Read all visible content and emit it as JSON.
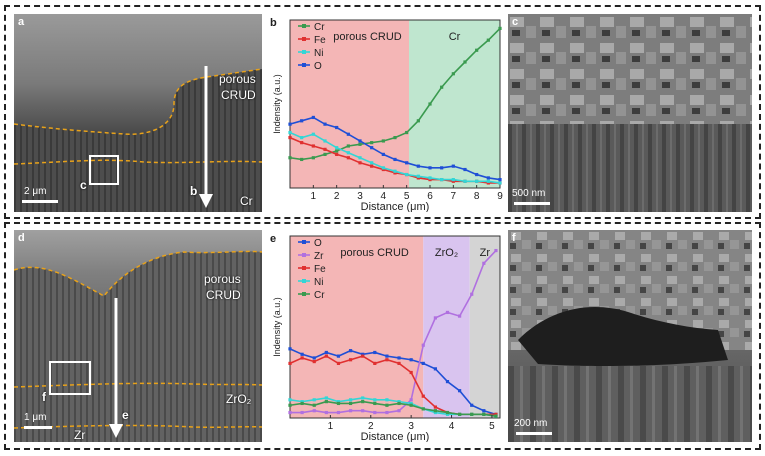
{
  "top_row": {
    "panel_a": {
      "letter": "a",
      "label_porous": "porous",
      "label_crud": "CRUD",
      "label_cr": "Cr",
      "label_b": "b",
      "label_c": "c",
      "scale": "2 μm"
    },
    "panel_c": {
      "letter": "c",
      "scale": "500 nm"
    }
  },
  "bottom_row": {
    "panel_d": {
      "letter": "d",
      "label_porous": "porous",
      "label_crud": "CRUD",
      "label_zro2": "ZrO₂",
      "label_zr": "Zr",
      "label_e": "e",
      "label_f": "f",
      "scale": "1 μm"
    },
    "panel_f": {
      "letter": "f",
      "scale": "200 nm"
    }
  },
  "chart_data": [
    {
      "panel": "b",
      "type": "line",
      "xlabel": "Distance (μm)",
      "ylabel": "Indensity (a.u.)",
      "xlim": [
        0,
        9
      ],
      "xticks": [
        1,
        2,
        3,
        4,
        5,
        6,
        7,
        8,
        9
      ],
      "regions": [
        {
          "label": "porous CRUD",
          "from": 0,
          "to": 5.1,
          "color": "#f4b6b6"
        },
        {
          "label": "Cr",
          "from": 5.1,
          "to": 9,
          "color": "#bfe6cf"
        }
      ],
      "series": [
        {
          "name": "Cr",
          "color": "#3a9a4f",
          "x": [
            0,
            0.5,
            1,
            1.5,
            2,
            2.5,
            3,
            3.5,
            4,
            4.5,
            5,
            5.5,
            6,
            6.5,
            7,
            7.5,
            8,
            8.5,
            9
          ],
          "values": [
            0.18,
            0.17,
            0.18,
            0.2,
            0.22,
            0.25,
            0.26,
            0.27,
            0.28,
            0.3,
            0.33,
            0.4,
            0.5,
            0.6,
            0.68,
            0.75,
            0.82,
            0.88,
            0.95
          ]
        },
        {
          "name": "Fe",
          "color": "#e03030",
          "x": [
            0,
            0.5,
            1,
            1.5,
            2,
            2.5,
            3,
            3.5,
            4,
            4.5,
            5,
            5.5,
            6,
            6.5,
            7,
            7.5,
            8,
            8.5,
            9
          ],
          "values": [
            0.3,
            0.27,
            0.25,
            0.23,
            0.2,
            0.18,
            0.15,
            0.13,
            0.11,
            0.09,
            0.08,
            0.06,
            0.05,
            0.05,
            0.04,
            0.04,
            0.04,
            0.03,
            0.03
          ]
        },
        {
          "name": "Ni",
          "color": "#33d6d6",
          "x": [
            0,
            0.5,
            1,
            1.5,
            2,
            2.5,
            3,
            3.5,
            4,
            4.5,
            5,
            5.5,
            6,
            6.5,
            7,
            7.5,
            8,
            8.5,
            9
          ],
          "values": [
            0.33,
            0.3,
            0.32,
            0.28,
            0.24,
            0.21,
            0.18,
            0.15,
            0.12,
            0.1,
            0.08,
            0.07,
            0.06,
            0.05,
            0.05,
            0.04,
            0.04,
            0.04,
            0.03
          ]
        },
        {
          "name": "O",
          "color": "#1f4fd6",
          "x": [
            0,
            0.5,
            1,
            1.5,
            2,
            2.5,
            3,
            3.5,
            4,
            4.5,
            5,
            5.5,
            6,
            6.5,
            7,
            7.5,
            8,
            8.5,
            9
          ],
          "values": [
            0.38,
            0.4,
            0.42,
            0.38,
            0.36,
            0.32,
            0.28,
            0.24,
            0.2,
            0.17,
            0.15,
            0.13,
            0.12,
            0.12,
            0.13,
            0.11,
            0.08,
            0.06,
            0.05
          ]
        }
      ]
    },
    {
      "panel": "e",
      "type": "line",
      "xlabel": "Distance (μm)",
      "ylabel": "Indensity (a.u.)",
      "xlim": [
        0,
        5.2
      ],
      "xticks": [
        1,
        2,
        3,
        4,
        5
      ],
      "regions": [
        {
          "label": "porous CRUD",
          "from": 0,
          "to": 3.3,
          "color": "#f4b6b6"
        },
        {
          "label": "ZrO₂",
          "from": 3.3,
          "to": 4.45,
          "color": "#d9c4ef"
        },
        {
          "label": "Zr",
          "from": 4.45,
          "to": 5.2,
          "color": "#d4d4d4"
        }
      ],
      "series": [
        {
          "name": "O",
          "color": "#1f4fd6",
          "x": [
            0,
            0.3,
            0.6,
            0.9,
            1.2,
            1.5,
            1.8,
            2.1,
            2.4,
            2.7,
            3.0,
            3.3,
            3.6,
            3.9,
            4.2,
            4.5,
            4.8,
            5.1
          ],
          "values": [
            0.38,
            0.35,
            0.33,
            0.36,
            0.34,
            0.37,
            0.35,
            0.36,
            0.34,
            0.33,
            0.32,
            0.3,
            0.27,
            0.2,
            0.15,
            0.07,
            0.04,
            0.02
          ]
        },
        {
          "name": "Zr",
          "color": "#b070e0",
          "x": [
            0,
            0.3,
            0.6,
            0.9,
            1.2,
            1.5,
            1.8,
            2.1,
            2.4,
            2.7,
            3.0,
            3.3,
            3.6,
            3.9,
            4.2,
            4.5,
            4.8,
            5.1
          ],
          "values": [
            0.03,
            0.03,
            0.04,
            0.03,
            0.03,
            0.04,
            0.04,
            0.03,
            0.03,
            0.04,
            0.1,
            0.4,
            0.55,
            0.58,
            0.56,
            0.68,
            0.85,
            0.92
          ]
        },
        {
          "name": "Fe",
          "color": "#e03030",
          "x": [
            0,
            0.3,
            0.6,
            0.9,
            1.2,
            1.5,
            1.8,
            2.1,
            2.4,
            2.7,
            3.0,
            3.3,
            3.6,
            3.9,
            4.2,
            4.5,
            4.8,
            5.1
          ],
          "values": [
            0.3,
            0.33,
            0.31,
            0.34,
            0.3,
            0.32,
            0.34,
            0.3,
            0.32,
            0.3,
            0.25,
            0.12,
            0.06,
            0.03,
            0.02,
            0.02,
            0.02,
            0.02
          ]
        },
        {
          "name": "Ni",
          "color": "#33d6d6",
          "x": [
            0,
            0.3,
            0.6,
            0.9,
            1.2,
            1.5,
            1.8,
            2.1,
            2.4,
            2.7,
            3.0,
            3.3,
            3.6,
            3.9,
            4.2,
            4.5,
            4.8,
            5.1
          ],
          "values": [
            0.1,
            0.09,
            0.1,
            0.11,
            0.09,
            0.1,
            0.11,
            0.1,
            0.1,
            0.09,
            0.08,
            0.05,
            0.03,
            0.02,
            0.02,
            0.02,
            0.02,
            0.01
          ]
        },
        {
          "name": "Cr",
          "color": "#3a9a4f",
          "x": [
            0,
            0.3,
            0.6,
            0.9,
            1.2,
            1.5,
            1.8,
            2.1,
            2.4,
            2.7,
            3.0,
            3.3,
            3.6,
            3.9,
            4.2,
            4.5,
            4.8,
            5.1
          ],
          "values": [
            0.07,
            0.08,
            0.07,
            0.09,
            0.08,
            0.08,
            0.09,
            0.08,
            0.07,
            0.08,
            0.07,
            0.05,
            0.04,
            0.03,
            0.02,
            0.02,
            0.02,
            0.01
          ]
        }
      ]
    }
  ]
}
